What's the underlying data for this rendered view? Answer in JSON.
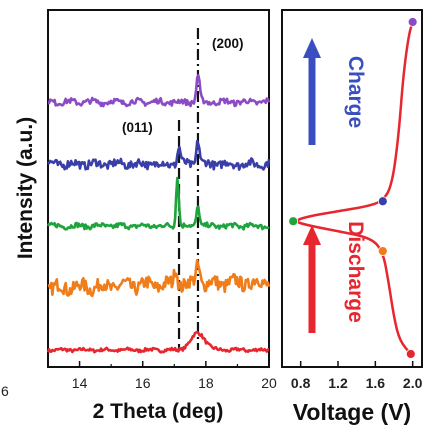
{
  "chart_data": [
    {
      "type": "line",
      "xlabel": "2 Theta (deg)",
      "ylabel": "Intensity (a.u.)",
      "xlim": [
        13,
        20
      ],
      "x_ticks": [
        14,
        16,
        18,
        20
      ],
      "y_ticks": [],
      "grid": false,
      "annotations": [
        {
          "text": "(200)",
          "x": 17.75
        },
        {
          "text": "(011)",
          "x": 17.15
        }
      ],
      "reference_lines": [
        {
          "x": 17.15,
          "style": "dashed",
          "label": "(011)"
        },
        {
          "x": 17.75,
          "style": "dash-dot",
          "label": "(200)"
        }
      ],
      "edge_text": "6",
      "series": [
        {
          "color": "#e8262f",
          "offset": 0,
          "noise": 0.04,
          "peaks": [
            {
              "x": 17.75,
              "h": 0.42,
              "w": 0.32
            }
          ],
          "ramp": 0
        },
        {
          "color": "#f07d1a",
          "offset": 1,
          "noise": 0.17,
          "peaks": [
            {
              "x": 17.05,
              "h": 0.45,
              "w": 0.07
            },
            {
              "x": 17.75,
              "h": 0.5,
              "w": 0.09
            }
          ],
          "ramp": 0.15
        },
        {
          "color": "#1fa33c",
          "offset": 2,
          "noise": 0.06,
          "peaks": [
            {
              "x": 17.1,
              "h": 1.25,
              "w": 0.06
            },
            {
              "x": 17.75,
              "h": 0.5,
              "w": 0.07
            }
          ],
          "ramp": 0
        },
        {
          "color": "#3a3fa8",
          "offset": 3,
          "noise": 0.1,
          "peaks": [
            {
              "x": 17.15,
              "h": 0.4,
              "w": 0.07
            },
            {
              "x": 17.75,
              "h": 0.6,
              "w": 0.07
            }
          ],
          "ramp": 0
        },
        {
          "color": "#8a4bc4",
          "offset": 4,
          "noise": 0.07,
          "peaks": [
            {
              "x": 17.75,
              "h": 0.68,
              "w": 0.07
            }
          ],
          "ramp": 0
        }
      ]
    },
    {
      "type": "line",
      "xlabel": "Voltage (V)",
      "xlim": [
        0.6,
        2.1
      ],
      "x_ticks": [
        "0.8",
        "1.2",
        "1.6",
        "2.0"
      ],
      "x_tick_values": [
        0.8,
        1.2,
        1.6,
        2.0
      ],
      "ylim": [
        0,
        5
      ],
      "grid": false,
      "line_color": "#e8262f",
      "labels": {
        "charge": "Charge",
        "discharge": "Discharge"
      },
      "label_colors": {
        "charge": "#3a4fbf",
        "discharge": "#e8262f"
      },
      "curve": [
        {
          "v": 1.98,
          "level": 0
        },
        {
          "v": 1.86,
          "level": 0.2
        },
        {
          "v": 1.8,
          "level": 0.55
        },
        {
          "v": 1.74,
          "level": 1.1
        },
        {
          "v": 1.68,
          "level": 1.55
        },
        {
          "v": 1.55,
          "level": 1.75
        },
        {
          "v": 1.2,
          "level": 1.85
        },
        {
          "v": 0.9,
          "level": 1.93
        },
        {
          "v": 0.72,
          "level": 2.0
        },
        {
          "v": 0.9,
          "level": 2.08
        },
        {
          "v": 1.2,
          "level": 2.15
        },
        {
          "v": 1.5,
          "level": 2.22
        },
        {
          "v": 1.68,
          "level": 2.3
        },
        {
          "v": 1.78,
          "level": 2.55
        },
        {
          "v": 1.85,
          "level": 3.3
        },
        {
          "v": 1.9,
          "level": 4.2
        },
        {
          "v": 1.96,
          "level": 4.82
        },
        {
          "v": 2.0,
          "level": 5.0
        }
      ],
      "points": [
        {
          "v": 1.98,
          "level": 0.0,
          "color": "#e8262f"
        },
        {
          "v": 1.68,
          "level": 1.55,
          "color": "#f07d1a"
        },
        {
          "v": 0.72,
          "level": 2.0,
          "color": "#1fa33c"
        },
        {
          "v": 1.68,
          "level": 2.3,
          "color": "#3a3fa8"
        },
        {
          "v": 2.0,
          "level": 5.0,
          "color": "#8a4bc4"
        }
      ]
    }
  ]
}
